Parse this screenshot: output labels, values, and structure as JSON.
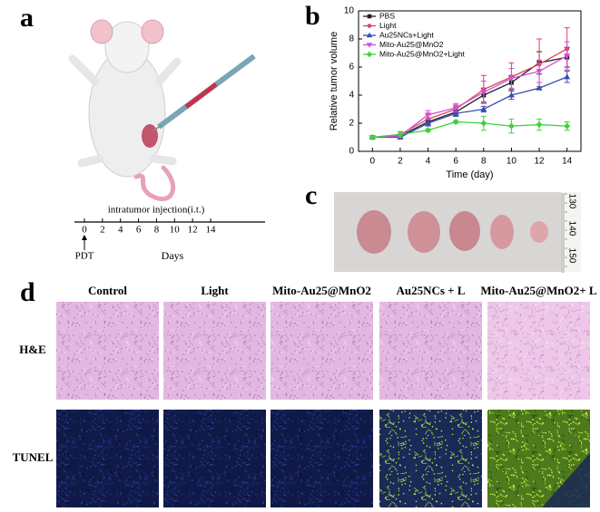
{
  "panel_labels": [
    "a",
    "b",
    "c",
    "d"
  ],
  "panel_a": {
    "caption": "intratumor injection(i.t.)",
    "timeline_ticks": [
      0,
      2,
      4,
      6,
      8,
      10,
      12,
      14
    ],
    "start_label": "PDT",
    "axis_label": "Days"
  },
  "chart_data": {
    "type": "line",
    "xlabel": "Time (day)",
    "ylabel": "Relative tumor volume",
    "x": [
      0,
      2,
      4,
      6,
      8,
      10,
      12,
      14
    ],
    "xlim": [
      -1,
      15
    ],
    "xticks": [
      0,
      2,
      4,
      6,
      8,
      10,
      12,
      14
    ],
    "ylim": [
      0,
      10
    ],
    "yticks": [
      0,
      2,
      4,
      6,
      8,
      10
    ],
    "series": [
      {
        "name": "PBS",
        "color": "#222222",
        "marker": "square",
        "values": [
          1,
          1.1,
          2.1,
          2.8,
          4.0,
          4.9,
          6.3,
          6.7
        ],
        "errors": [
          0.1,
          0.1,
          0.2,
          0.3,
          0.5,
          0.5,
          0.8,
          0.7
        ]
      },
      {
        "name": "Light",
        "color": "#d9455f",
        "marker": "circle",
        "values": [
          1,
          1.2,
          2.3,
          3.0,
          4.4,
          5.3,
          6.2,
          7.3
        ],
        "errors": [
          0.1,
          0.2,
          0.3,
          0.3,
          1.0,
          1.0,
          1.8,
          1.5
        ]
      },
      {
        "name": "Au25NCs+Light",
        "color": "#3b4fb0",
        "marker": "triangle",
        "values": [
          1,
          1.0,
          2.0,
          2.7,
          3.0,
          4.0,
          4.5,
          5.3
        ],
        "errors": [
          0.1,
          0.1,
          0.2,
          0.2,
          0.2,
          0.3,
          0.1,
          0.4
        ]
      },
      {
        "name": "Mito-Au25@MnO2",
        "color": "#d24fd2",
        "marker": "triangle-down",
        "values": [
          1,
          1.1,
          2.6,
          3.1,
          4.2,
          5.2,
          5.7,
          6.8
        ],
        "errors": [
          0.1,
          0.1,
          0.3,
          0.3,
          0.8,
          0.7,
          0.8,
          1.0
        ]
      },
      {
        "name": "Mito-Au25@MnO2+Light",
        "color": "#3fd13f",
        "marker": "diamond",
        "values": [
          1,
          1.2,
          1.5,
          2.1,
          2.0,
          1.8,
          1.9,
          1.8
        ],
        "errors": [
          0.1,
          0.2,
          0.1,
          0.1,
          0.5,
          0.5,
          0.4,
          0.3
        ]
      }
    ]
  },
  "panel_c": {
    "ruler_labels": [
      130,
      140,
      150
    ]
  },
  "panel_d": {
    "columns": [
      "Control",
      "Light",
      "Mito-Au25@MnO2",
      "Au25NCs + L",
      "Mito-Au25@MnO2+ L"
    ],
    "rows": [
      "H&E",
      "TUNEL"
    ]
  }
}
